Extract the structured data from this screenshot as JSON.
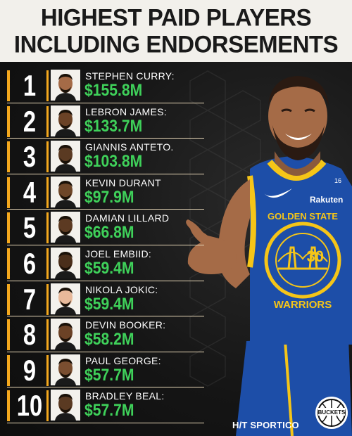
{
  "header": {
    "line1": "HIGHEST PAID PLAYERS",
    "line2": "INCLUDING ENDORSEMENTS"
  },
  "players": [
    {
      "rank": "1",
      "name": "STEPHEN CURRY:",
      "amount": "$155.8M"
    },
    {
      "rank": "2",
      "name": "LEBRON JAMES:",
      "amount": "$133.7M"
    },
    {
      "rank": "3",
      "name": "GIANNIS ANTETO.",
      "amount": "$103.8M"
    },
    {
      "rank": "4",
      "name": "KEVIN DURANT",
      "amount": "$97.9M"
    },
    {
      "rank": "5",
      "name": "DAMIAN LILLARD",
      "amount": "$66.8M"
    },
    {
      "rank": "6",
      "name": "JOEL EMBIID:",
      "amount": "$59.4M"
    },
    {
      "rank": "7",
      "name": "NIKOLA JOKIC:",
      "amount": "$59.4M"
    },
    {
      "rank": "8",
      "name": "DEVIN BOOKER:",
      "amount": "$58.2M"
    },
    {
      "rank": "9",
      "name": "PAUL GEORGE:",
      "amount": "$57.7M"
    },
    {
      "rank": "10",
      "name": "BRADLEY BEAL:",
      "amount": "$57.7M"
    }
  ],
  "jersey": {
    "team_line1": "GOLDEN STATE",
    "team_line2": "WARRIORS",
    "number": "30",
    "sponsor": "Rakuten",
    "patch": "16"
  },
  "credit": "H/T SPORTICO",
  "logo_text": "BUCKETS",
  "colors": {
    "accent": "#f4a81d",
    "amount": "#3fd15a",
    "jersey_blue": "#1d4ea8",
    "jersey_gold": "#f5c518"
  }
}
